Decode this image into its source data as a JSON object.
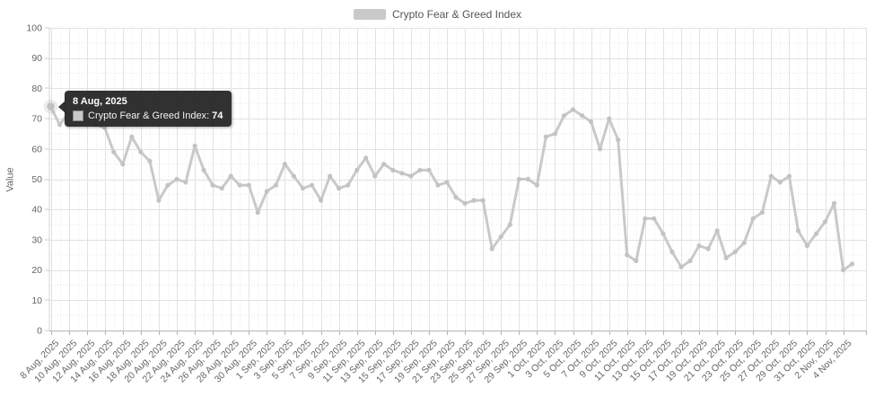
{
  "chart": {
    "legend_label": "Crypto Fear & Greed Index",
    "y_axis_title": "Value"
  },
  "tooltip": {
    "date": "8 Aug, 2025",
    "series": "Crypto Fear & Greed Index",
    "value": "74"
  },
  "colors": {
    "line": "#c9c9c9",
    "marker": "#c3c3c3",
    "major_grid": "#e2e2e2",
    "minor_grid": "#e9e9e9",
    "axis_line": "#b5b5b5",
    "y_axis_line": "#d6d6d6",
    "label_text": "#666666",
    "tooltip_bg": "#2a2a2a"
  },
  "chart_data": {
    "type": "line",
    "title": "",
    "series_name": "Crypto Fear & Greed Index",
    "legend_position": "top",
    "grid": "major solid, minor dotted",
    "xlabel": "",
    "ylabel": "Value",
    "ylim": [
      0,
      100
    ],
    "y_ticks": [
      0,
      10,
      20,
      30,
      40,
      50,
      60,
      70,
      80,
      90,
      100
    ],
    "x_tick_every": 2,
    "highlighted_point": {
      "date": "8 Aug, 2025",
      "value": 74
    },
    "dates": [
      "8 Aug, 2025",
      "9 Aug, 2025",
      "10 Aug, 2025",
      "11 Aug, 2025",
      "12 Aug, 2025",
      "13 Aug, 2025",
      "14 Aug, 2025",
      "15 Aug, 2025",
      "16 Aug, 2025",
      "17 Aug, 2025",
      "18 Aug, 2025",
      "19 Aug, 2025",
      "20 Aug, 2025",
      "21 Aug, 2025",
      "22 Aug, 2025",
      "23 Aug, 2025",
      "24 Aug, 2025",
      "25 Aug, 2025",
      "26 Aug, 2025",
      "27 Aug, 2025",
      "28 Aug, 2025",
      "29 Aug, 2025",
      "30 Aug, 2025",
      "31 Aug, 2025",
      "1 Sep, 2025",
      "2 Sep, 2025",
      "3 Sep, 2025",
      "4 Sep, 2025",
      "5 Sep, 2025",
      "6 Sep, 2025",
      "7 Sep, 2025",
      "8 Sep, 2025",
      "9 Sep, 2025",
      "10 Sep, 2025",
      "11 Sep, 2025",
      "12 Sep, 2025",
      "13 Sep, 2025",
      "14 Sep, 2025",
      "15 Sep, 2025",
      "16 Sep, 2025",
      "17 Sep, 2025",
      "18 Sep, 2025",
      "19 Sep, 2025",
      "20 Sep, 2025",
      "21 Sep, 2025",
      "22 Sep, 2025",
      "23 Sep, 2025",
      "24 Sep, 2025",
      "25 Sep, 2025",
      "26 Sep, 2025",
      "27 Sep, 2025",
      "28 Sep, 2025",
      "29 Sep, 2025",
      "30 Sep, 2025",
      "1 Oct, 2025",
      "2 Oct, 2025",
      "3 Oct, 2025",
      "4 Oct, 2025",
      "5 Oct, 2025",
      "6 Oct, 2025",
      "7 Oct, 2025",
      "8 Oct, 2025",
      "9 Oct, 2025",
      "10 Oct, 2025",
      "11 Oct, 2025",
      "12 Oct, 2025",
      "13 Oct, 2025",
      "14 Oct, 2025",
      "15 Oct, 2025",
      "16 Oct, 2025",
      "17 Oct, 2025",
      "18 Oct, 2025",
      "19 Oct, 2025",
      "20 Oct, 2025",
      "21 Oct, 2025",
      "22 Oct, 2025",
      "23 Oct, 2025",
      "24 Oct, 2025",
      "25 Oct, 2025",
      "26 Oct, 2025",
      "27 Oct, 2025",
      "28 Oct, 2025",
      "29 Oct, 2025",
      "30 Oct, 2025",
      "31 Oct, 2025",
      "1 Nov, 2025",
      "2 Nov, 2025",
      "3 Nov, 2025",
      "4 Nov, 2025",
      "5 Nov, 2025"
    ],
    "values": [
      74,
      68,
      72,
      71,
      68,
      68,
      67,
      59,
      55,
      64,
      59,
      56,
      43,
      48,
      50,
      49,
      61,
      53,
      48,
      47,
      51,
      48,
      48,
      39,
      46,
      48,
      55,
      51,
      47,
      48,
      43,
      51,
      47,
      48,
      53,
      57,
      51,
      55,
      53,
      52,
      51,
      53,
      53,
      48,
      49,
      44,
      42,
      43,
      43,
      27,
      31,
      35,
      50,
      50,
      48,
      64,
      65,
      71,
      73,
      71,
      69,
      60,
      70,
      63,
      25,
      23,
      37,
      37,
      32,
      26,
      21,
      23,
      28,
      27,
      33,
      24,
      26,
      29,
      37,
      39,
      51,
      49,
      51,
      33,
      28,
      32,
      36,
      42,
      20,
      22
    ]
  }
}
